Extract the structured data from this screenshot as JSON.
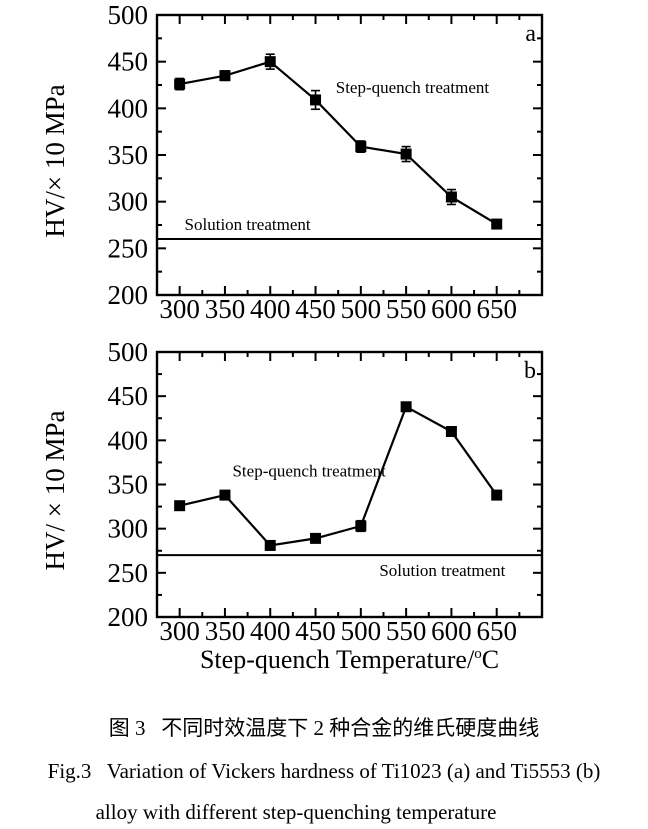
{
  "figure": {
    "caption_zh": "图 3   不同时效温度下 2 种合金的维氏硬度曲线",
    "caption_en_line1": "Fig.3   Variation of Vickers hardness of Ti1023 (a) and Ti5553 (b)",
    "caption_en_line2": "alloy with different step-quenching temperature"
  },
  "colors": {
    "foreground": "#000000",
    "background": "#ffffff"
  },
  "chart_data": [
    {
      "type": "line",
      "panel_label": "a",
      "ylabel": "HV/× 10 MPa",
      "xlabel": null,
      "xlim": [
        275,
        700
      ],
      "ylim": [
        200,
        500
      ],
      "x_ticks": [
        300,
        350,
        400,
        450,
        500,
        550,
        600,
        650
      ],
      "y_ticks": [
        200,
        250,
        300,
        350,
        400,
        450,
        500
      ],
      "grid": false,
      "x": [
        300,
        350,
        400,
        450,
        500,
        550,
        600,
        650
      ],
      "series": [
        {
          "name": "Step-quench treatment",
          "marker": "square",
          "values": [
            426,
            435,
            450,
            409,
            359,
            351,
            305,
            276
          ],
          "errors": [
            6,
            5,
            8,
            10,
            6,
            8,
            8,
            3
          ]
        }
      ],
      "series_label_pos": {
        "x": 557,
        "y": 423
      },
      "reference_line": {
        "label": "Solution treatment",
        "value": 260,
        "label_pos": {
          "x": 375,
          "y": 276
        }
      }
    },
    {
      "type": "line",
      "panel_label": "b",
      "ylabel": "HV/ × 10 MPa",
      "xlabel": {
        "text": "Step-quench Temperature/",
        "sup": "o",
        "end": "C"
      },
      "xlim": [
        275,
        700
      ],
      "ylim": [
        200,
        500
      ],
      "x_ticks": [
        300,
        350,
        400,
        450,
        500,
        550,
        600,
        650
      ],
      "y_ticks": [
        200,
        250,
        300,
        350,
        400,
        450,
        500
      ],
      "grid": false,
      "x": [
        300,
        350,
        400,
        450,
        500,
        550,
        600,
        650
      ],
      "series": [
        {
          "name": "Step-quench treatment",
          "marker": "square",
          "values": [
            326,
            338,
            281,
            289,
            303,
            438,
            410,
            338
          ],
          "errors": [
            5,
            2,
            2,
            3,
            6,
            2,
            3,
            3
          ]
        }
      ],
      "series_label_pos": {
        "x": 443,
        "y": 366
      },
      "reference_line": {
        "label": "Solution treatment",
        "value": 270,
        "label_pos": {
          "x": 590,
          "y": 253
        }
      }
    }
  ]
}
